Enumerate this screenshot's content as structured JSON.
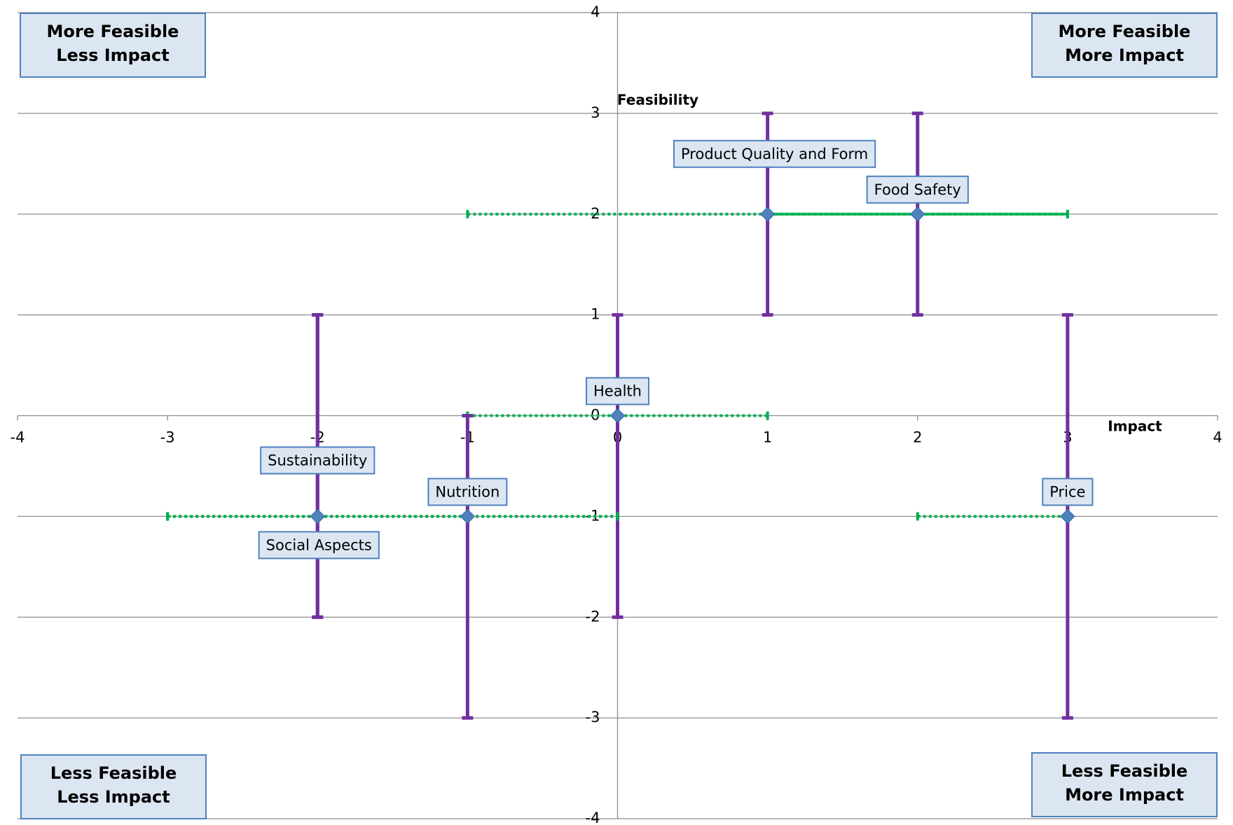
{
  "chart_data": {
    "type": "scatter",
    "x_label": "Impact",
    "y_label": "Feasibility",
    "xlim": [
      -4,
      4
    ],
    "ylim": [
      -4,
      4
    ],
    "xticks": [
      -4,
      -3,
      -2,
      -1,
      0,
      1,
      2,
      3,
      4
    ],
    "yticks": [
      -4,
      -3,
      -2,
      -1,
      0,
      1,
      2,
      3,
      4
    ],
    "grid": true,
    "point_color": "#4f81bd",
    "yerr_color": "#7030a0",
    "xerr_color": "#00b050",
    "points": [
      {
        "label": "Product Quality and Form",
        "x": 1,
        "y": 2,
        "xerr": [
          2,
          2
        ],
        "yerr": [
          1,
          1
        ]
      },
      {
        "label": "Food Safety",
        "x": 2,
        "y": 2,
        "xerr": [
          1,
          1
        ],
        "yerr": [
          1,
          1
        ]
      },
      {
        "label": "Health",
        "x": 0,
        "y": 0,
        "xerr": [
          1,
          1
        ],
        "yerr": [
          2,
          1
        ]
      },
      {
        "label": "Sustainability",
        "x": -2,
        "y": -1,
        "xerr": [
          1,
          2
        ],
        "yerr": [
          1,
          2
        ]
      },
      {
        "label": "Nutrition",
        "x": -1,
        "y": -1,
        "xerr": [
          2,
          1
        ],
        "yerr": [
          2,
          1
        ]
      },
      {
        "label": "Social Aspects",
        "x": -2,
        "y": -1,
        "xerr": [
          1,
          1
        ],
        "yerr": [
          1,
          2
        ]
      },
      {
        "label": "Price",
        "x": 3,
        "y": -1,
        "xerr": [
          1,
          0
        ],
        "yerr": [
          2,
          2
        ]
      }
    ],
    "quadrants": [
      {
        "lines": [
          "More Feasible",
          "Less Impact"
        ]
      },
      {
        "lines": [
          "More Feasible",
          "More Impact"
        ]
      },
      {
        "lines": [
          "Less Feasible",
          "Less Impact"
        ]
      },
      {
        "lines": [
          "Less Feasible",
          "More Impact"
        ]
      }
    ]
  }
}
